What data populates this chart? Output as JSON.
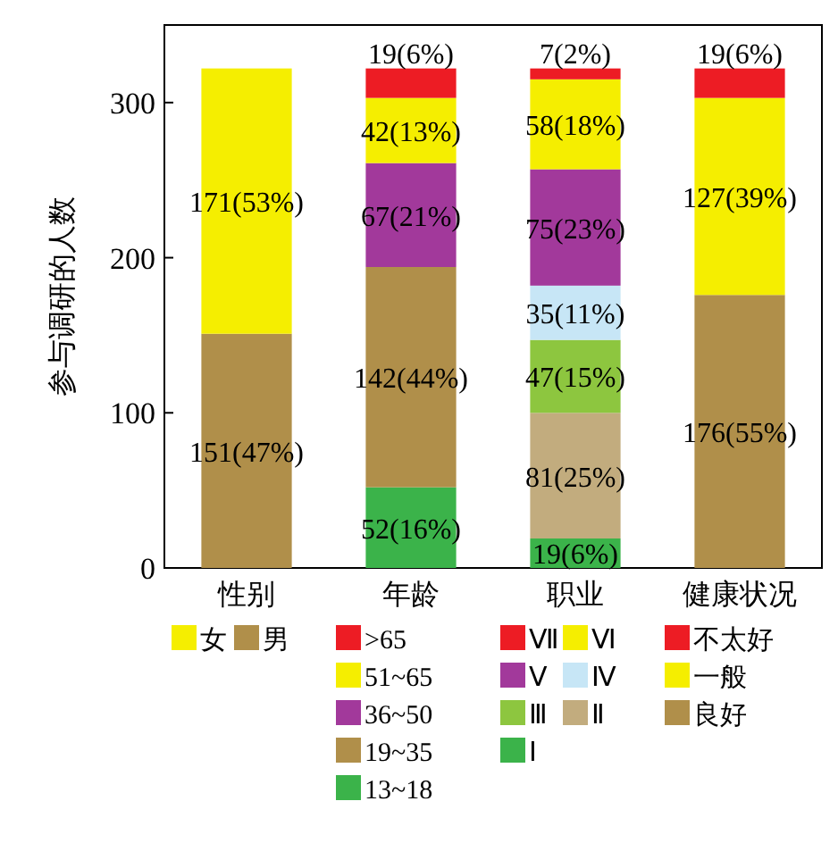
{
  "chart_data": {
    "type": "bar",
    "stacked": true,
    "ylabel": "参与调研的人数",
    "categories": [
      "性别",
      "年龄",
      "职业",
      "健康状况"
    ],
    "ylim": [
      0,
      350
    ],
    "yticks": [
      0,
      100,
      200,
      300
    ],
    "legend": "bottom",
    "series": [
      {
        "name": "男",
        "color": "#b08f4a",
        "values": [
          151,
          null,
          null,
          null
        ],
        "value_labels": [
          "151(47%)",
          null,
          null,
          null
        ]
      },
      {
        "name": "女",
        "color": "#f5ee00",
        "values": [
          171,
          null,
          null,
          null
        ],
        "value_labels": [
          "171(53%)",
          null,
          null,
          null
        ]
      },
      {
        "name": "13~18",
        "color": "#3bb34a",
        "values": [
          null,
          52,
          null,
          null
        ],
        "value_labels": [
          null,
          "52(16%)",
          null,
          null
        ]
      },
      {
        "name": "19~35",
        "color": "#b08f4a",
        "values": [
          null,
          142,
          null,
          null
        ],
        "value_labels": [
          null,
          "142(44%)",
          null,
          null
        ]
      },
      {
        "name": "36~50",
        "color": "#a2399b",
        "values": [
          null,
          67,
          null,
          null
        ],
        "value_labels": [
          null,
          "67(21%)",
          null,
          null
        ]
      },
      {
        "name": "51~65",
        "color": "#f5ee00",
        "values": [
          null,
          42,
          null,
          null
        ],
        "value_labels": [
          null,
          "42(13%)",
          null,
          null
        ]
      },
      {
        "name": ">65",
        "color": "#ed1c24",
        "values": [
          null,
          19,
          null,
          null
        ],
        "value_labels": [
          null,
          "19(6%)",
          null,
          null
        ]
      },
      {
        "name": "Ⅰ",
        "color": "#3bb34a",
        "values": [
          null,
          null,
          19,
          null
        ],
        "value_labels": [
          null,
          null,
          "19(6%)",
          null
        ]
      },
      {
        "name": "Ⅱ",
        "color": "#c2ac7e",
        "values": [
          null,
          null,
          81,
          null
        ],
        "value_labels": [
          null,
          null,
          "81(25%)",
          null
        ]
      },
      {
        "name": "Ⅲ",
        "color": "#8dc63f",
        "values": [
          null,
          null,
          47,
          null
        ],
        "value_labels": [
          null,
          null,
          "47(15%)",
          null
        ]
      },
      {
        "name": "Ⅳ",
        "color": "#c7e6f6",
        "values": [
          null,
          null,
          35,
          null
        ],
        "value_labels": [
          null,
          null,
          "35(11%)",
          null
        ]
      },
      {
        "name": "Ⅴ",
        "color": "#a2399b",
        "values": [
          null,
          null,
          75,
          null
        ],
        "value_labels": [
          null,
          null,
          "75(23%)",
          null
        ]
      },
      {
        "name": "Ⅵ",
        "color": "#f5ee00",
        "values": [
          null,
          null,
          58,
          null
        ],
        "value_labels": [
          null,
          null,
          "58(18%)",
          null
        ]
      },
      {
        "name": "Ⅶ",
        "color": "#ed1c24",
        "values": [
          null,
          null,
          7,
          null
        ],
        "value_labels": [
          null,
          null,
          "7(2%)",
          null
        ]
      },
      {
        "name": "良好",
        "color": "#b08f4a",
        "values": [
          null,
          null,
          null,
          176
        ],
        "value_labels": [
          null,
          null,
          null,
          "176(55%)"
        ]
      },
      {
        "name": "一般",
        "color": "#f5ee00",
        "values": [
          null,
          null,
          null,
          127
        ],
        "value_labels": [
          null,
          null,
          null,
          "127(39%)"
        ]
      },
      {
        "name": "不太好",
        "color": "#ed1c24",
        "values": [
          null,
          null,
          null,
          19
        ],
        "value_labels": [
          null,
          null,
          null,
          "19(6%)"
        ]
      }
    ]
  }
}
